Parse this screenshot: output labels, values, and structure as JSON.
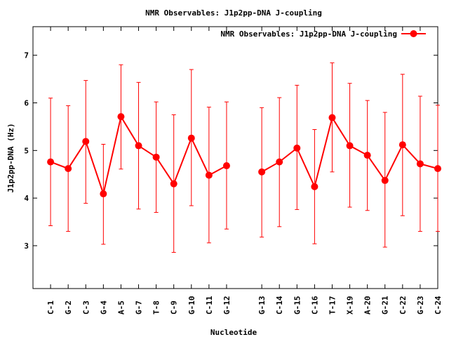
{
  "chart_data": {
    "type": "line",
    "title": "NMR Observables: J1p2pp-DNA J-coupling",
    "xlabel": "Nucleotide",
    "ylabel": "J1p2pp-DNA (Hz)",
    "ylim": [
      2.1,
      7.6
    ],
    "yticks": [
      3,
      4,
      5,
      6,
      7
    ],
    "legend": {
      "label": "NMR Observables: J1p2pp-DNA J-coupling",
      "position": "top-right"
    },
    "color": "#ff0000",
    "series": [
      {
        "name": "NMR Observables: J1p2pp-DNA J-coupling",
        "points": [
          {
            "label": "C-1",
            "x": 1,
            "y": 4.76,
            "lo": 3.42,
            "hi": 6.1
          },
          {
            "label": "G-2",
            "x": 2,
            "y": 4.62,
            "lo": 3.3,
            "hi": 5.94
          },
          {
            "label": "C-3",
            "x": 3,
            "y": 5.19,
            "lo": 3.89,
            "hi": 6.47
          },
          {
            "label": "G-4",
            "x": 4,
            "y": 4.09,
            "lo": 3.03,
            "hi": 5.13
          },
          {
            "label": "A-5",
            "x": 5,
            "y": 5.71,
            "lo": 4.61,
            "hi": 6.8
          },
          {
            "label": "G-7",
            "x": 6,
            "y": 5.1,
            "lo": 3.77,
            "hi": 6.43
          },
          {
            "label": "T-8",
            "x": 7,
            "y": 4.86,
            "lo": 3.7,
            "hi": 6.02
          },
          {
            "label": "C-9",
            "x": 8,
            "y": 4.3,
            "lo": 2.86,
            "hi": 5.75
          },
          {
            "label": "G-10",
            "x": 9,
            "y": 5.26,
            "lo": 3.84,
            "hi": 6.7
          },
          {
            "label": "C-11",
            "x": 10,
            "y": 4.48,
            "lo": 3.06,
            "hi": 5.91
          },
          {
            "label": "G-12",
            "x": 11,
            "y": 4.68,
            "lo": 3.35,
            "hi": 6.02
          }
        ]
      },
      {
        "name": "NMR Observables: J1p2pp-DNA J-coupling",
        "points": [
          {
            "label": "G-13",
            "x": 13,
            "y": 4.55,
            "lo": 3.18,
            "hi": 5.9
          },
          {
            "label": "C-14",
            "x": 14,
            "y": 4.76,
            "lo": 3.4,
            "hi": 6.11
          },
          {
            "label": "G-15",
            "x": 15,
            "y": 5.05,
            "lo": 3.76,
            "hi": 6.37
          },
          {
            "label": "C-16",
            "x": 16,
            "y": 4.24,
            "lo": 3.04,
            "hi": 5.44
          },
          {
            "label": "T-17",
            "x": 17,
            "y": 5.69,
            "lo": 4.55,
            "hi": 6.84
          },
          {
            "label": "X-19",
            "x": 18,
            "y": 5.1,
            "lo": 3.81,
            "hi": 6.41
          },
          {
            "label": "A-20",
            "x": 19,
            "y": 4.9,
            "lo": 3.74,
            "hi": 6.05
          },
          {
            "label": "G-21",
            "x": 20,
            "y": 4.37,
            "lo": 2.97,
            "hi": 5.8
          },
          {
            "label": "C-22",
            "x": 21,
            "y": 5.12,
            "lo": 3.63,
            "hi": 6.6
          },
          {
            "label": "G-23",
            "x": 22,
            "y": 4.72,
            "lo": 3.3,
            "hi": 6.14
          },
          {
            "label": "C-24",
            "x": 23,
            "y": 4.62,
            "lo": 3.3,
            "hi": 5.95
          }
        ]
      }
    ]
  }
}
